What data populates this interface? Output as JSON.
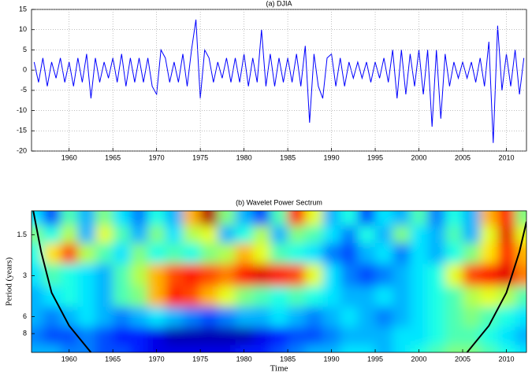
{
  "chart_data": [
    {
      "type": "line",
      "title": "(a)  DJIA",
      "color": "#0000ff",
      "grid": true,
      "xlim": [
        1955.7,
        2012.3
      ],
      "ylim": [
        -20,
        15
      ],
      "xticks": [
        1960,
        1965,
        1970,
        1975,
        1980,
        1985,
        1990,
        1995,
        2000,
        2005,
        2010
      ],
      "yticks": [
        -20,
        -15,
        -10,
        -5,
        0,
        5,
        10,
        15
      ],
      "x": [
        1956,
        1956.5,
        1957,
        1957.5,
        1958,
        1958.5,
        1959,
        1959.5,
        1960,
        1960.5,
        1961,
        1961.5,
        1962,
        1962.5,
        1963,
        1963.5,
        1964,
        1964.5,
        1965,
        1965.5,
        1966,
        1966.5,
        1967,
        1967.5,
        1968,
        1968.5,
        1969,
        1969.5,
        1970,
        1970.5,
        1971,
        1971.5,
        1972,
        1972.5,
        1973,
        1973.5,
        1974,
        1974.5,
        1975,
        1975.5,
        1976,
        1976.5,
        1977,
        1977.5,
        1978,
        1978.5,
        1979,
        1979.5,
        1980,
        1980.5,
        1981,
        1981.5,
        1982,
        1982.5,
        1983,
        1983.5,
        1984,
        1984.5,
        1985,
        1985.5,
        1986,
        1986.5,
        1987,
        1987.5,
        1988,
        1988.5,
        1989,
        1989.5,
        1990,
        1990.5,
        1991,
        1991.5,
        1992,
        1992.5,
        1993,
        1993.5,
        1994,
        1994.5,
        1995,
        1995.5,
        1996,
        1996.5,
        1997,
        1997.5,
        1998,
        1998.5,
        1999,
        1999.5,
        2000,
        2000.5,
        2001,
        2001.5,
        2002,
        2002.5,
        2003,
        2003.5,
        2004,
        2004.5,
        2005,
        2005.5,
        2006,
        2006.5,
        2007,
        2007.5,
        2008,
        2008.5,
        2009,
        2009.5,
        2010,
        2010.5,
        2011,
        2011.5,
        2012
      ],
      "values": [
        2,
        -3,
        3,
        -4,
        2,
        -2,
        3,
        -3,
        2,
        -4,
        3,
        -3,
        4,
        -7,
        3,
        -3,
        2,
        -2,
        3,
        -3,
        4,
        -4,
        3,
        -3,
        3,
        -3,
        3,
        -4,
        -6,
        5,
        3,
        -3,
        2,
        -3,
        4,
        -4,
        5,
        12.5,
        -7,
        5,
        3,
        -3,
        2,
        -2,
        3,
        -3,
        3,
        -3,
        4,
        -4,
        3,
        -3,
        10,
        -4,
        4,
        -4,
        3,
        -3,
        3,
        -3,
        4,
        -4,
        6,
        -13,
        4,
        -4,
        -7,
        3,
        4,
        -4,
        3,
        -4,
        2,
        -2,
        2,
        -2,
        2,
        -3,
        2,
        -2,
        3,
        -3,
        5,
        -7,
        5,
        -6,
        4,
        -4,
        5,
        -6,
        5,
        -14,
        5,
        -12,
        4,
        -4,
        2,
        -2,
        2,
        -2,
        2,
        -3,
        3,
        -4,
        7,
        -18,
        11,
        -5,
        4,
        -4,
        5,
        -6,
        3
      ]
    },
    {
      "type": "heatmap",
      "title": "(b)   Wavelet Power Sectrum",
      "xlabel": "Time",
      "ylabel": "Period (years)",
      "colormap": "jet",
      "yscale": "log",
      "yreverse": true,
      "xlim": [
        1955.7,
        2012.3
      ],
      "ylim": [
        1,
        11
      ],
      "xticks": [
        1960,
        1965,
        1970,
        1975,
        1980,
        1985,
        1990,
        1995,
        2000,
        2005,
        2010
      ],
      "yticks": [
        1.5,
        3,
        6,
        8
      ],
      "x": [
        1956,
        1958,
        1960,
        1962,
        1964,
        1966,
        1968,
        1970,
        1972,
        1974,
        1976,
        1978,
        1980,
        1982,
        1984,
        1986,
        1988,
        1990,
        1992,
        1994,
        1996,
        1998,
        2000,
        2002,
        2004,
        2006,
        2008,
        2010,
        2012
      ],
      "y": [
        1.1,
        1.5,
        2,
        3,
        4.3,
        6,
        8.5,
        11
      ],
      "z": [
        [
          0.35,
          0.2,
          0.45,
          0.3,
          0.5,
          0.35,
          0.25,
          0.4,
          0.3,
          0.7,
          0.95,
          0.5,
          0.3,
          0.2,
          0.45,
          0.85,
          0.6,
          0.3,
          0.4,
          0.2,
          0.35,
          0.3,
          0.45,
          0.25,
          0.4,
          0.3,
          0.7,
          0.85,
          0.5
        ],
        [
          0.5,
          0.4,
          0.55,
          0.3,
          0.6,
          0.45,
          0.3,
          0.5,
          0.35,
          0.55,
          0.6,
          0.3,
          0.4,
          0.55,
          0.3,
          0.5,
          0.45,
          0.35,
          0.25,
          0.4,
          0.3,
          0.5,
          0.35,
          0.3,
          0.45,
          0.3,
          0.6,
          0.9,
          0.6
        ],
        [
          0.4,
          0.65,
          0.8,
          0.55,
          0.45,
          0.35,
          0.5,
          0.4,
          0.45,
          0.4,
          0.5,
          0.55,
          0.7,
          0.6,
          0.45,
          0.4,
          0.35,
          0.25,
          0.2,
          0.3,
          0.35,
          0.25,
          0.35,
          0.3,
          0.4,
          0.5,
          0.65,
          0.85,
          0.7
        ],
        [
          0.35,
          0.45,
          0.4,
          0.35,
          0.3,
          0.45,
          0.55,
          0.7,
          0.8,
          0.85,
          0.8,
          0.75,
          0.85,
          0.9,
          0.85,
          0.8,
          0.6,
          0.35,
          0.25,
          0.2,
          0.25,
          0.3,
          0.35,
          0.4,
          0.6,
          0.8,
          0.85,
          0.9,
          0.75
        ],
        [
          0.3,
          0.35,
          0.4,
          0.35,
          0.3,
          0.45,
          0.5,
          0.7,
          0.85,
          0.8,
          0.7,
          0.6,
          0.5,
          0.45,
          0.4,
          0.45,
          0.4,
          0.35,
          0.3,
          0.3,
          0.35,
          0.3,
          0.35,
          0.4,
          0.45,
          0.55,
          0.6,
          0.55,
          0.45
        ],
        [
          0.3,
          0.25,
          0.3,
          0.35,
          0.3,
          0.25,
          0.3,
          0.35,
          0.3,
          0.25,
          0.2,
          0.25,
          0.3,
          0.3,
          0.35,
          0.3,
          0.25,
          0.3,
          0.35,
          0.3,
          0.25,
          0.3,
          0.35,
          0.4,
          0.45,
          0.5,
          0.45,
          0.4,
          0.35
        ],
        [
          0.25,
          0.2,
          0.2,
          0.25,
          0.2,
          0.15,
          0.15,
          0.1,
          0.05,
          0.05,
          0.05,
          0.05,
          0.05,
          0.1,
          0.15,
          0.2,
          0.2,
          0.25,
          0.3,
          0.3,
          0.3,
          0.35,
          0.35,
          0.4,
          0.45,
          0.45,
          0.4,
          0.35,
          0.3
        ],
        [
          0.3,
          0.3,
          0.25,
          0.25,
          0.2,
          0.2,
          0.15,
          0.1,
          0.1,
          0.1,
          0.1,
          0.1,
          0.15,
          0.15,
          0.2,
          0.25,
          0.3,
          0.3,
          0.35,
          0.35,
          0.3,
          0.35,
          0.4,
          0.45,
          0.5,
          0.5,
          0.45,
          0.4,
          0.35
        ]
      ],
      "lines": [
        {
          "color": "#000000",
          "x": [
            1955.9,
            1956.8,
            1958,
            1960,
            1962.5
          ],
          "y": [
            1,
            2,
            4,
            7,
            11
          ]
        },
        {
          "color": "#000000",
          "x": [
            2005.5,
            2008,
            2010,
            2011.5,
            2012.3
          ],
          "y": [
            11,
            7,
            4,
            2,
            1.2
          ]
        }
      ]
    }
  ]
}
